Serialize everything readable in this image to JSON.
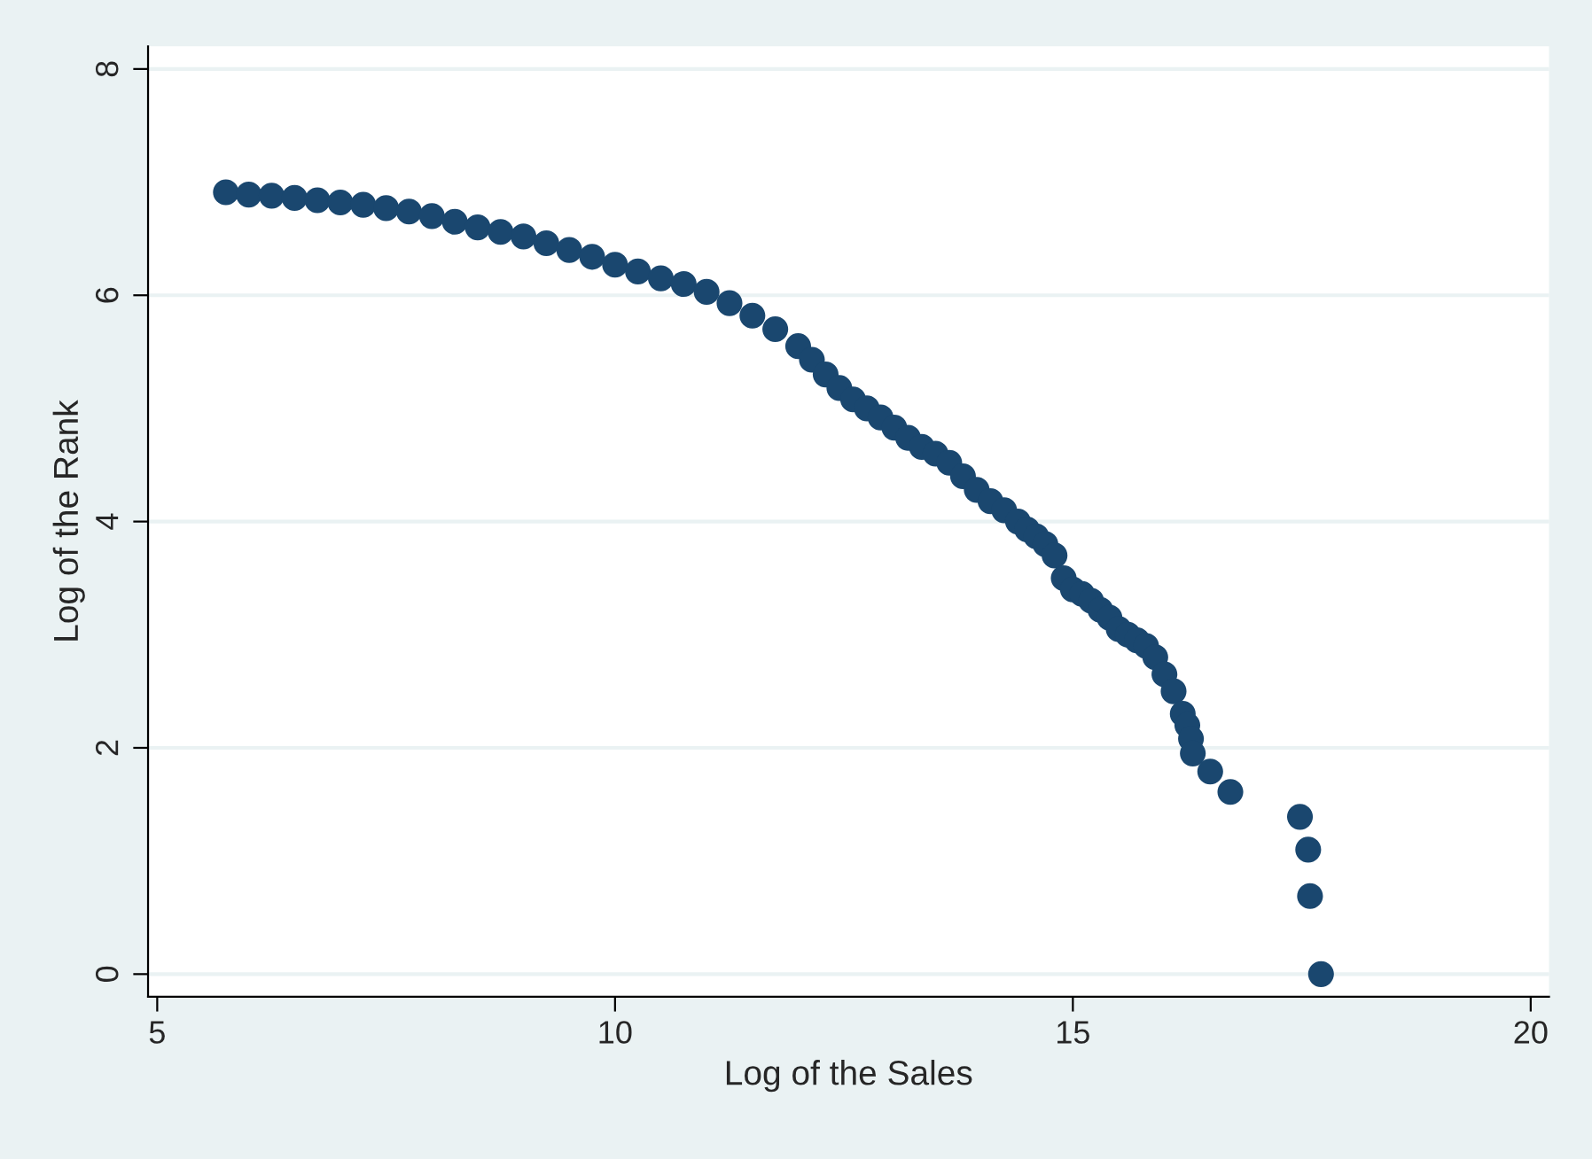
{
  "chart_data": {
    "type": "scatter",
    "xlabel": "Log of the Sales",
    "ylabel": "Log of the Rank",
    "x": [
      5.75,
      6.0,
      6.25,
      6.5,
      6.75,
      7.0,
      7.25,
      7.5,
      7.75,
      8.0,
      8.25,
      8.5,
      8.75,
      9.0,
      9.25,
      9.5,
      9.75,
      10.0,
      10.25,
      10.5,
      10.75,
      11.0,
      11.25,
      11.5,
      11.75,
      12.0,
      12.15,
      12.3,
      12.45,
      12.6,
      12.75,
      12.9,
      13.05,
      13.2,
      13.35,
      13.5,
      13.65,
      13.8,
      13.95,
      14.1,
      14.25,
      14.4,
      14.5,
      14.6,
      14.7,
      14.8,
      14.9,
      15.0,
      15.1,
      15.2,
      15.3,
      15.4,
      15.5,
      15.6,
      15.7,
      15.8,
      15.9,
      16.0,
      16.1,
      16.2,
      16.25,
      16.29,
      16.31,
      16.5,
      16.72,
      17.48,
      17.57,
      17.59,
      17.71
    ],
    "series": [
      {
        "color": "#1a476f",
        "values": [
          6.91,
          6.89,
          6.88,
          6.86,
          6.84,
          6.82,
          6.8,
          6.77,
          6.74,
          6.7,
          6.65,
          6.6,
          6.56,
          6.52,
          6.46,
          6.4,
          6.34,
          6.27,
          6.21,
          6.15,
          6.1,
          6.03,
          5.93,
          5.82,
          5.7,
          5.55,
          5.43,
          5.3,
          5.18,
          5.08,
          5.0,
          4.92,
          4.83,
          4.74,
          4.66,
          4.6,
          4.52,
          4.4,
          4.28,
          4.18,
          4.1,
          4.0,
          3.93,
          3.87,
          3.8,
          3.7,
          3.5,
          3.4,
          3.36,
          3.3,
          3.22,
          3.15,
          3.05,
          3.0,
          2.95,
          2.9,
          2.8,
          2.65,
          2.5,
          2.3,
          2.2,
          2.08,
          1.95,
          1.79,
          1.61,
          1.39,
          1.1,
          0.69,
          0.0
        ]
      }
    ],
    "xlim": [
      4.9,
      20.2
    ],
    "xticks": [
      5,
      10,
      15,
      20
    ],
    "ylim": [
      -0.2,
      8.2
    ],
    "yticks": [
      0,
      2,
      4,
      6,
      8
    ],
    "grid": "y",
    "marker": "circle"
  }
}
